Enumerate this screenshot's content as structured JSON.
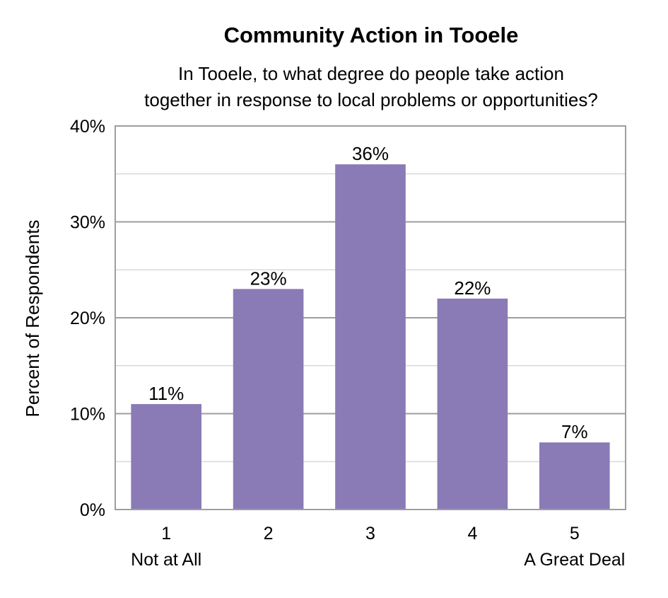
{
  "chart_data": {
    "type": "bar",
    "title": "Community Action in Tooele",
    "subtitle_lines": [
      "In Tooele, to what degree do people take action",
      "together in response to local problems or opportunities?"
    ],
    "ylabel": "Percent of Respondents",
    "xlabel": "",
    "categories": [
      "1",
      "2",
      "3",
      "4",
      "5"
    ],
    "category_sublabels": [
      "Not at All",
      "",
      "",
      "",
      "A Great Deal"
    ],
    "values": [
      11,
      23,
      36,
      22,
      7
    ],
    "data_labels": [
      "11%",
      "23%",
      "36%",
      "22%",
      "7%"
    ],
    "ylim": [
      0,
      40
    ],
    "yticks": [
      0,
      10,
      20,
      30,
      40
    ],
    "ytick_labels": [
      "0%",
      "10%",
      "20%",
      "30%",
      "40%"
    ],
    "minor_gridlines": [
      5,
      15,
      25,
      35
    ],
    "grid": true,
    "legend": "none",
    "bar_color": "#8A7BB6",
    "gridline_color": "#9E9E9E"
  }
}
